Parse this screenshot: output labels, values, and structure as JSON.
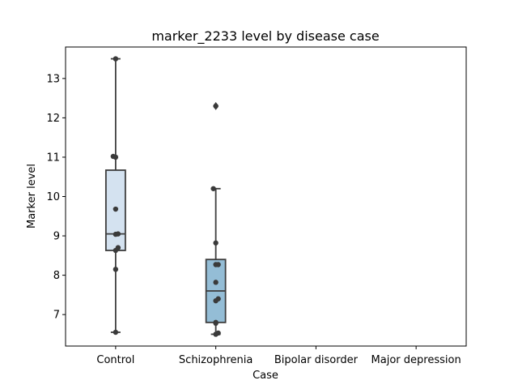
{
  "chart_data": {
    "type": "box",
    "title": "marker_2233 level by disease case",
    "xlabel": "Case",
    "ylabel": "Marker level",
    "categories": [
      "Control",
      "Schizophrenia",
      "Bipolar disorder",
      "Major depression"
    ],
    "ylim": [
      6.2,
      13.8
    ],
    "yticks": [
      7,
      8,
      9,
      10,
      11,
      12,
      13
    ],
    "grid": false,
    "boxes": [
      {
        "category": "Control",
        "whisker_low": 6.55,
        "q1": 8.63,
        "median": 9.05,
        "q3": 10.67,
        "whisker_high": 13.5,
        "outliers": [],
        "color": "#d4e2f0",
        "points": [
          13.5,
          11.02,
          11.0,
          9.68,
          9.05,
          9.04,
          8.7,
          8.63,
          8.15,
          6.55
        ]
      },
      {
        "category": "Schizophrenia",
        "whisker_low": 6.5,
        "q1": 6.8,
        "median": 7.6,
        "q3": 8.4,
        "whisker_high": 10.2,
        "outliers": [
          12.3
        ],
        "color": "#94bdd6",
        "points": [
          12.3,
          10.2,
          8.82,
          8.27,
          8.27,
          7.82,
          7.4,
          7.35,
          6.8,
          6.78,
          6.53,
          6.5
        ]
      },
      {
        "category": "Bipolar disorder",
        "whisker_low": null,
        "q1": null,
        "median": null,
        "q3": null,
        "whisker_high": null,
        "outliers": [],
        "points": []
      },
      {
        "category": "Major depression",
        "whisker_low": null,
        "q1": null,
        "median": null,
        "q3": null,
        "whisker_high": null,
        "outliers": [],
        "points": []
      }
    ],
    "colors": {
      "box_edge": "#3d3d3d",
      "point": "#3a3a3a",
      "axis": "#000000"
    }
  }
}
